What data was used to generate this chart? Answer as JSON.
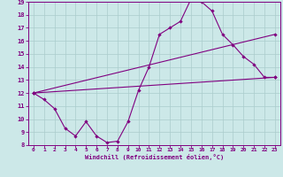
{
  "line1_x": [
    0,
    1,
    2,
    3,
    4,
    5,
    6,
    7,
    8,
    9,
    10,
    11,
    12,
    13,
    14,
    15,
    16,
    17,
    18,
    19,
    20,
    21,
    22,
    23
  ],
  "line1_y": [
    12.0,
    11.5,
    10.8,
    9.3,
    8.7,
    9.8,
    8.7,
    8.2,
    8.3,
    9.8,
    12.2,
    14.0,
    16.5,
    17.0,
    17.5,
    19.2,
    19.0,
    18.3,
    16.5,
    15.7,
    14.8,
    14.2,
    13.2,
    13.2
  ],
  "line2_x": [
    0,
    23
  ],
  "line2_y": [
    12.0,
    13.2
  ],
  "line3_x": [
    0,
    23
  ],
  "line3_y": [
    12.0,
    16.5
  ],
  "color": "#800080",
  "bg_color": "#cce8e8",
  "grid_color": "#aacccc",
  "xlabel": "Windchill (Refroidissement éolien,°C)",
  "xlim": [
    -0.5,
    23.5
  ],
  "ylim": [
    8,
    19
  ],
  "xticks": [
    0,
    1,
    2,
    3,
    4,
    5,
    6,
    7,
    8,
    9,
    10,
    11,
    12,
    13,
    14,
    15,
    16,
    17,
    18,
    19,
    20,
    21,
    22,
    23
  ],
  "yticks": [
    8,
    9,
    10,
    11,
    12,
    13,
    14,
    15,
    16,
    17,
    18,
    19
  ],
  "marker": "D",
  "markersize": 2.2,
  "linewidth": 0.8
}
